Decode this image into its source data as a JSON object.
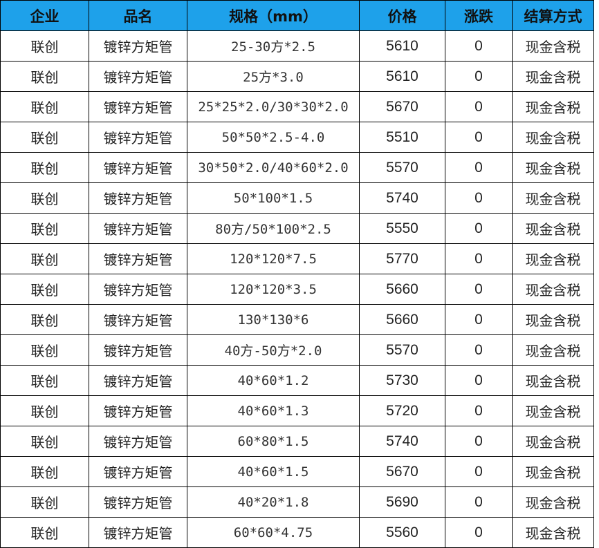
{
  "header_color": "#1ea1ea",
  "columns": [
    "企业",
    "品名",
    "规格（mm）",
    "价格",
    "涨跌",
    "结算方式"
  ],
  "rows": [
    [
      "联创",
      "镀锌方矩管",
      "25-30方*2.5",
      "5610",
      "0",
      "现金含税"
    ],
    [
      "联创",
      "镀锌方矩管",
      "25方*3.0",
      "5610",
      "0",
      "现金含税"
    ],
    [
      "联创",
      "镀锌方矩管",
      "25*25*2.0/30*30*2.0",
      "5670",
      "0",
      "现金含税"
    ],
    [
      "联创",
      "镀锌方矩管",
      "50*50*2.5-4.0",
      "5510",
      "0",
      "现金含税"
    ],
    [
      "联创",
      "镀锌方矩管",
      "30*50*2.0/40*60*2.0",
      "5570",
      "0",
      "现金含税"
    ],
    [
      "联创",
      "镀锌方矩管",
      "50*100*1.5",
      "5740",
      "0",
      "现金含税"
    ],
    [
      "联创",
      "镀锌方矩管",
      "80方/50*100*2.5",
      "5550",
      "0",
      "现金含税"
    ],
    [
      "联创",
      "镀锌方矩管",
      "120*120*7.5",
      "5770",
      "0",
      "现金含税"
    ],
    [
      "联创",
      "镀锌方矩管",
      "120*120*3.5",
      "5660",
      "0",
      "现金含税"
    ],
    [
      "联创",
      "镀锌方矩管",
      "130*130*6",
      "5660",
      "0",
      "现金含税"
    ],
    [
      "联创",
      "镀锌方矩管",
      "40方-50方*2.0",
      "5570",
      "0",
      "现金含税"
    ],
    [
      "联创",
      "镀锌方矩管",
      "40*60*1.2",
      "5730",
      "0",
      "现金含税"
    ],
    [
      "联创",
      "镀锌方矩管",
      "40*60*1.3",
      "5720",
      "0",
      "现金含税"
    ],
    [
      "联创",
      "镀锌方矩管",
      "60*80*1.5",
      "5740",
      "0",
      "现金含税"
    ],
    [
      "联创",
      "镀锌方矩管",
      "40*60*1.5",
      "5670",
      "0",
      "现金含税"
    ],
    [
      "联创",
      "镀锌方矩管",
      "40*20*1.8",
      "5690",
      "0",
      "现金含税"
    ],
    [
      "联创",
      "镀锌方矩管",
      "60*60*4.75",
      "5560",
      "0",
      "现金含税"
    ]
  ]
}
